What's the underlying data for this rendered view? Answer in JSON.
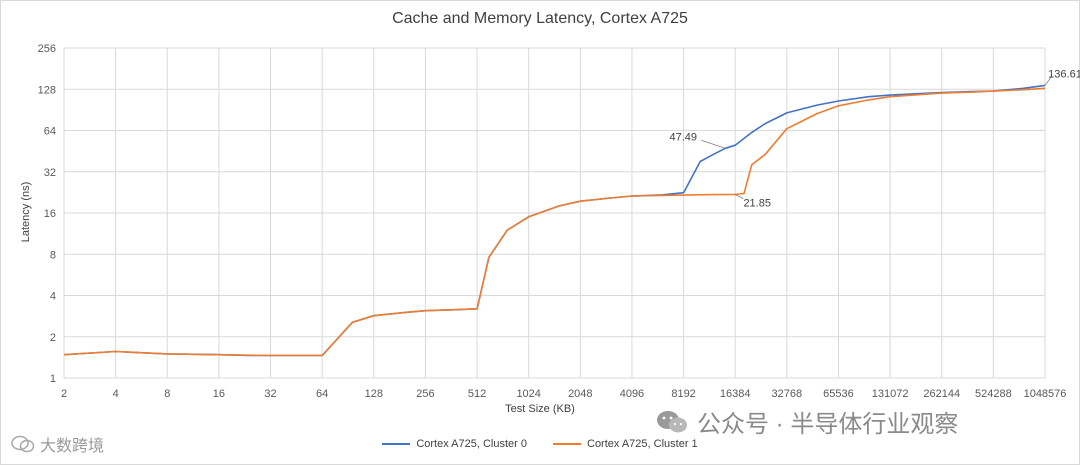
{
  "chart_data": {
    "type": "line",
    "title": "Cache and Memory Latency, Cortex A725",
    "xlabel": "Test Size (KB)",
    "ylabel": "Latency (ns)",
    "x_scale": "log2",
    "y_scale": "log2",
    "xlim": [
      2,
      1048576
    ],
    "ylim": [
      1,
      256
    ],
    "x_ticks": [
      "2",
      "4",
      "8",
      "16",
      "32",
      "64",
      "128",
      "256",
      "512",
      "1024",
      "2048",
      "4096",
      "8192",
      "16384",
      "32768",
      "65536",
      "131072",
      "262144",
      "524288",
      "1048576"
    ],
    "y_ticks": [
      "1",
      "2",
      "4",
      "8",
      "16",
      "32",
      "64",
      "128",
      "256"
    ],
    "grid": "vertical and horizontal",
    "legend_position": "bottom",
    "series": [
      {
        "name": "Cortex A725, Cluster 0",
        "color": "#4472c4",
        "points": [
          [
            2,
            1.48
          ],
          [
            4,
            1.56
          ],
          [
            8,
            1.5
          ],
          [
            12,
            1.49
          ],
          [
            16,
            1.48
          ],
          [
            24,
            1.46
          ],
          [
            32,
            1.46
          ],
          [
            48,
            1.46
          ],
          [
            64,
            1.46
          ],
          [
            96,
            2.55
          ],
          [
            128,
            2.85
          ],
          [
            192,
            3.0
          ],
          [
            256,
            3.1
          ],
          [
            384,
            3.15
          ],
          [
            512,
            3.2
          ],
          [
            600,
            7.6
          ],
          [
            768,
            12
          ],
          [
            1024,
            15
          ],
          [
            1536,
            18
          ],
          [
            2048,
            19.5
          ],
          [
            3072,
            20.6
          ],
          [
            4096,
            21.3
          ],
          [
            6144,
            21.7
          ],
          [
            8192,
            22.5
          ],
          [
            10240,
            38
          ],
          [
            12288,
            43
          ],
          [
            14336,
            47.49
          ],
          [
            16384,
            50
          ],
          [
            20480,
            62
          ],
          [
            24576,
            72
          ],
          [
            32768,
            86
          ],
          [
            49152,
            98
          ],
          [
            65536,
            105
          ],
          [
            98304,
            113
          ],
          [
            131072,
            116
          ],
          [
            196608,
            119
          ],
          [
            262144,
            121
          ],
          [
            393216,
            123
          ],
          [
            524288,
            124
          ],
          [
            786432,
            130
          ],
          [
            1048576,
            136.61
          ]
        ]
      },
      {
        "name": "Cortex A725, Cluster 1",
        "color": "#ed7d31",
        "points": [
          [
            2,
            1.48
          ],
          [
            4,
            1.56
          ],
          [
            8,
            1.5
          ],
          [
            16,
            1.48
          ],
          [
            32,
            1.46
          ],
          [
            64,
            1.46
          ],
          [
            96,
            2.55
          ],
          [
            128,
            2.85
          ],
          [
            192,
            3.0
          ],
          [
            256,
            3.1
          ],
          [
            384,
            3.15
          ],
          [
            512,
            3.2
          ],
          [
            600,
            7.6
          ],
          [
            768,
            12
          ],
          [
            1024,
            15
          ],
          [
            1536,
            18
          ],
          [
            2048,
            19.5
          ],
          [
            3072,
            20.6
          ],
          [
            4096,
            21.3
          ],
          [
            6144,
            21.5
          ],
          [
            8192,
            21.6
          ],
          [
            12288,
            21.8
          ],
          [
            16384,
            21.85
          ],
          [
            18432,
            22.2
          ],
          [
            20480,
            36
          ],
          [
            24576,
            43
          ],
          [
            32768,
            66
          ],
          [
            49152,
            85
          ],
          [
            65536,
            97
          ],
          [
            98304,
            107
          ],
          [
            131072,
            113
          ],
          [
            196608,
            117
          ],
          [
            262144,
            120
          ],
          [
            393216,
            122
          ],
          [
            524288,
            124
          ],
          [
            786432,
            127
          ],
          [
            1048576,
            130
          ]
        ]
      }
    ],
    "annotations": [
      {
        "text": "47.49",
        "series": 0,
        "x": 14336,
        "y": 47.49
      },
      {
        "text": "21.85",
        "series": 1,
        "x": 16384,
        "y": 21.85
      },
      {
        "text": "136.61",
        "series": 0,
        "x": 1048576,
        "y": 136.61
      }
    ]
  },
  "legend": {
    "series0_label": "Cortex A725, Cluster 0",
    "series1_label": "Cortex A725, Cluster 1"
  },
  "watermarks": {
    "left": "大数跨境",
    "right": "公众号 · 半导体行业观察"
  },
  "colors": {
    "grid": "#d9d9d9",
    "axis_text": "#595959",
    "series0": "#4472c4",
    "series1": "#ed7d31"
  }
}
